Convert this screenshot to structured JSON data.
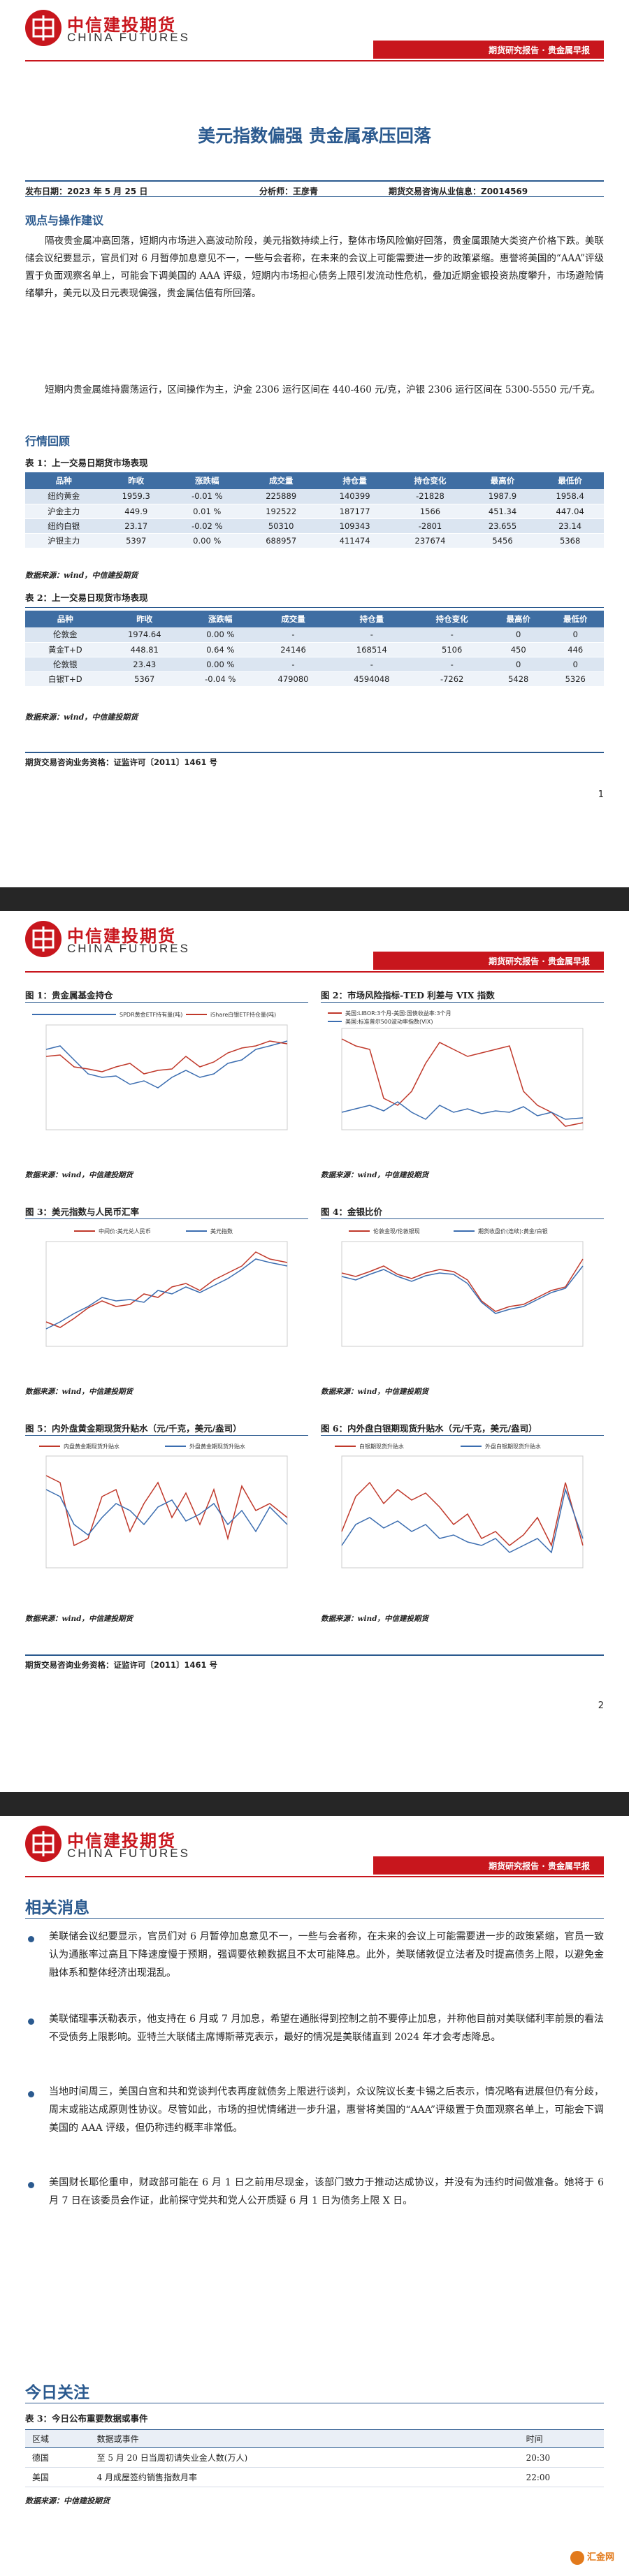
{
  "header": {
    "company_cn": "中信建投期货",
    "company_en": "CHINA FUTURES",
    "report_type": "期货研究报告 · 贵金属早报"
  },
  "page1": {
    "title": "美元指数偏强 贵金属承压回落",
    "meta": {
      "date": "发布日期：2023 年 5 月 25 日",
      "analyst": "分析师：王彦青",
      "license": "期货交易咨询从业信息：Z0014569"
    },
    "section_view": "观点与操作建议",
    "para1": "隔夜贵金属冲高回落，短期内市场进入高波动阶段，美元指数持续上行，整体市场风险偏好回落，贵金属跟随大类资产价格下跌。美联储会议纪要显示，官员们对 6 月暂停加息意见不一，一些与会者称，在未来的会议上可能需要进一步的政策紧缩。惠誉将美国的“AAA”评级置于负面观察名单上，可能会下调美国的 AAA 评级，短期内市场担心债务上限引发流动性危机，叠加近期金银投资热度攀升，市场避险情绪攀升，美元以及日元表现偏强，贵金属估值有所回落。",
    "para2": "短期内贵金属维持震荡运行，区间操作为主，沪金 2306 运行区间在 440-460 元/克，沪银 2306 运行区间在 5300-5550 元/千克。",
    "section_review": "行情回顾",
    "table1_caption": "表 1：上一交易日期货市场表现",
    "table1_headers": [
      "品种",
      "昨收",
      "涨跌幅",
      "成交量",
      "持仓量",
      "持仓变化",
      "最高价",
      "最低价"
    ],
    "table1_rows": [
      [
        "纽约黄金",
        "1959.3",
        "-0.01 %",
        "225889",
        "140399",
        "-21828",
        "1987.9",
        "1958.4"
      ],
      [
        "沪金主力",
        "449.9",
        "0.01 %",
        "192522",
        "187177",
        "1566",
        "451.34",
        "447.04"
      ],
      [
        "纽约白银",
        "23.17",
        "-0.02 %",
        "50310",
        "109343",
        "-2801",
        "23.655",
        "23.14"
      ],
      [
        "沪银主力",
        "5397",
        "0.00 %",
        "688957",
        "411474",
        "237674",
        "5456",
        "5368"
      ]
    ],
    "table1_source": "数据来源：wind，中信建投期货",
    "table2_caption": "表 2：上一交易日现货市场表现",
    "table2_headers": [
      "品种",
      "昨收",
      "涨跌幅",
      "成交量",
      "持仓量",
      "持仓变化",
      "最高价",
      "最低价"
    ],
    "table2_rows": [
      [
        "伦敦金",
        "1974.64",
        "0.00 %",
        "-",
        "-",
        "-",
        "0",
        "0"
      ],
      [
        "黄金T+D",
        "448.81",
        "0.64 %",
        "24146",
        "168514",
        "5106",
        "450",
        "446"
      ],
      [
        "伦敦银",
        "23.43",
        "0.00 %",
        "-",
        "-",
        "-",
        "0",
        "0"
      ],
      [
        "白银T+D",
        "5367",
        "-0.04 %",
        "479080",
        "4594048",
        "-7262",
        "5428",
        "5326"
      ]
    ],
    "table2_source": "数据来源：wind，中信建投期货",
    "footer": "期货交易咨询业务资格：证监许可〔2011〕1461 号",
    "page_no": "1"
  },
  "page2": {
    "figures": [
      {
        "caption": "图 1：贵金属基金持仓",
        "source": "数据来源：wind，中信建投期货",
        "legend": [
          "SPDR黄金ETF持有量(吨)",
          "iShare白银ETF持仓量(吨)"
        ]
      },
      {
        "caption": "图 2：市场风险指标-TED 利差与 VIX 指数",
        "source": "数据来源：wind，中信建投期货",
        "legend": [
          "美国:LIBOR:3个月-美国:国债收益率:3个月",
          "美国:标准普尔500波动率指数(VIX)"
        ]
      },
      {
        "caption": "图 3：美元指数与人民币汇率",
        "source": "数据来源：wind，中信建投期货",
        "legend": [
          "中间价:美元兑人民币",
          "美元指数"
        ]
      },
      {
        "caption": "图 4：金银比价",
        "source": "数据来源：wind，中信建投期货",
        "legend": [
          "伦敦金现/伦敦银现",
          "期货收盘价(连续):黄金/白银"
        ]
      },
      {
        "caption": "图 5：内外盘黄金期现货升贴水（元/千克，美元/盎司）",
        "source": "数据来源：wind，中信建投期货",
        "legend": [
          "内盘黄金期现货升贴水",
          "外盘黄金期现货升贴水"
        ]
      },
      {
        "caption": "图 6：内外盘白银期现货升贴水（元/千克，美元/盎司）",
        "source": "数据来源：wind，中信建投期货",
        "legend": [
          "白银期现货升贴水",
          "外盘白银期现货升贴水"
        ]
      }
    ],
    "footer": "期货交易咨询业务资格：证监许可〔2011〕1461 号",
    "page_no": "2"
  },
  "page3": {
    "section_news": "相关消息",
    "news": [
      "美联储会议纪要显示，官员们对 6 月暂停加息意见不一，一些与会者称，在未来的会议上可能需要进一步的政策紧缩，官员一致认为通胀率过高且下降速度慢于预期，强调要依赖数据且不太可能降息。此外，美联储敦促立法者及时提高债务上限，以避免金融体系和整体经济出现混乱。",
      "美联储理事沃勒表示，他支持在 6 月或 7 月加息，希望在通胀得到控制之前不要停止加息，并称他目前对美联储利率前景的看法不受债务上限影响。亚特兰大联储主席博斯蒂克表示，最好的情况是美联储直到 2024 年才会考虑降息。",
      "当地时间周三，美国白宫和共和党谈判代表再度就债务上限进行谈判，众议院议长麦卡锡之后表示，情况略有进展但仍有分歧，周末或能达成原则性协议。尽管如此，市场的担忧情绪进一步升温，惠誉将美国的“AAA”评级置于负面观察名单上，可能会下调美国的 AAA 评级，但仍称违约概率非常低。",
      "美国财长耶伦重申，财政部可能在 6 月 1 日之前用尽现金，该部门致力于推动达成协议，并没有为违约时间做准备。她将于 6 月 7 日在该委员会作证，此前探守党共和党人公开质疑 6 月 1 日为债务上限 X 日。"
    ],
    "section_today": "今日关注",
    "table3_caption": "表 3：今日公布重要数据或事件",
    "table3_headers": [
      "区域",
      "数据或事件",
      "时间"
    ],
    "table3_rows": [
      [
        "德国",
        "至 5 月 20 日当周初请失业金人数(万人)",
        "20:30"
      ],
      [
        "美国",
        "4 月成屋签约销售指数月率",
        "22:00"
      ]
    ],
    "table3_source": "数据来源：中信建投期货",
    "watermark": "汇金网"
  },
  "colors": {
    "brand_red": "#c8161d",
    "brand_blue": "#2b5a8f",
    "series_blue": "#3b6db0",
    "series_red": "#c0392b"
  }
}
